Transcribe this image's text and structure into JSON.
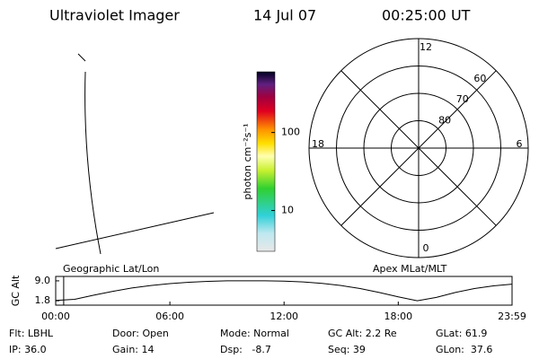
{
  "header": {
    "title": "Ultraviolet Imager",
    "date": "14 Jul 07",
    "time": "00:25:00 UT"
  },
  "geo_panel": {
    "label": "Geographic Lat/Lon"
  },
  "colorbar": {
    "label": "photon cm⁻²s⁻¹",
    "log": true,
    "clim": [
      3,
      600
    ],
    "ticks": [
      {
        "value": 10,
        "label": "10"
      },
      {
        "value": 100,
        "label": "100"
      }
    ]
  },
  "polar": {
    "label": "Apex MLat/MLT",
    "lat_min": 50,
    "lat_rings": [
      80,
      70,
      60
    ],
    "mlt_ticks": [
      0,
      6,
      12,
      18
    ]
  },
  "chart_data": {
    "type": "line",
    "ylabel": "GC Alt",
    "color": "#000000",
    "x": [
      0,
      1,
      2,
      3,
      4,
      5,
      6,
      7,
      8,
      9,
      10,
      11,
      12,
      13,
      14,
      15,
      16,
      17,
      18,
      19,
      20,
      21,
      22,
      23,
      23.98
    ],
    "values": [
      1.9,
      2.3,
      3.8,
      5.2,
      6.4,
      7.3,
      8.0,
      8.5,
      8.8,
      9.0,
      9.0,
      9.0,
      8.9,
      8.6,
      8.1,
      7.3,
      6.2,
      4.8,
      3.2,
      1.8,
      3.0,
      4.8,
      6.2,
      7.2,
      7.8
    ],
    "xlim": [
      0,
      23.98
    ],
    "ylim": [
      0.2,
      10.6
    ],
    "xticks": [
      {
        "value": 0,
        "label": "00:00"
      },
      {
        "value": 6,
        "label": "06:00"
      },
      {
        "value": 12,
        "label": "12:00"
      },
      {
        "value": 18,
        "label": "18:00"
      },
      {
        "value": 23.98,
        "label": "23:59"
      }
    ],
    "yticks": [
      {
        "value": 1.8,
        "label": "1.8"
      },
      {
        "value": 9,
        "label": "9.0"
      }
    ],
    "marker_x": 0.42,
    "marker_color": "#cc0000"
  },
  "info": {
    "rows": [
      [
        "Flt: LBHL",
        "Door: Open",
        "Mode: Normal",
        "GC Alt: 2.2 Re",
        "GLat: 61.9"
      ],
      [
        "IP: 36.0",
        "Gain: 14",
        "Dsp:   -8.7",
        "Seq: 39",
        "GLon:  37.6"
      ]
    ]
  }
}
